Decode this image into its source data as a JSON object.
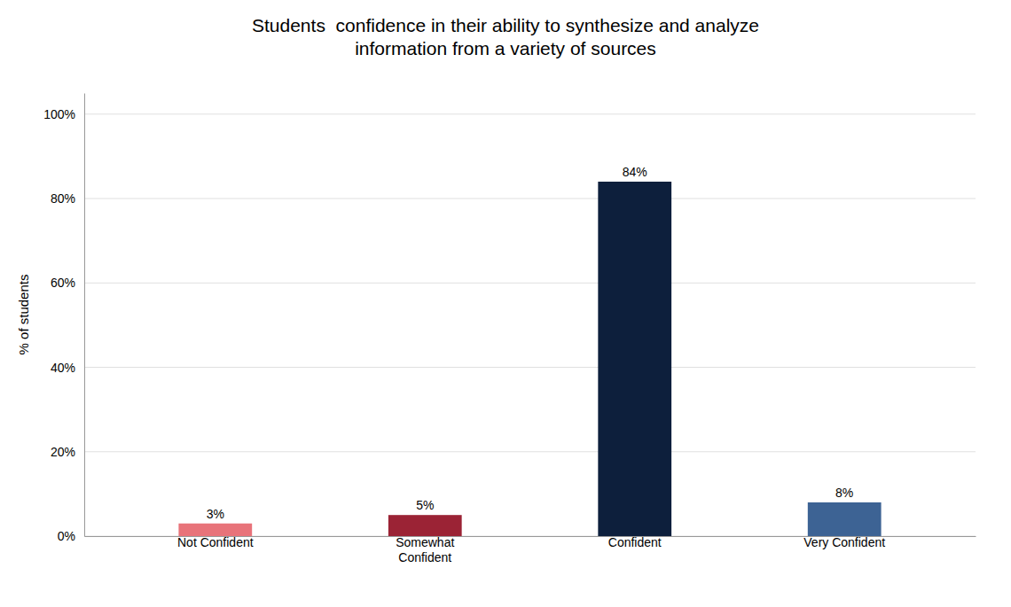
{
  "chart_data": {
    "type": "bar",
    "title": "Students  confidence in their ability to synthesize and analyze\ninformation from a variety of sources",
    "categories": [
      "Not Confident",
      "Somewhat\nConfident",
      "Confident",
      "Very Confident"
    ],
    "values": [
      3,
      5,
      84,
      8
    ],
    "value_labels": [
      "3%",
      "5%",
      "84%",
      "8%"
    ],
    "data_labels": true,
    "colors": [
      "#e8737a",
      "#9b2335",
      "#0d1f3c",
      "#3d6394"
    ],
    "ylabel": "% of students",
    "ylim": [
      0,
      105
    ],
    "yticks": [
      {
        "value": 0,
        "label": "0%"
      },
      {
        "value": 20,
        "label": "20%"
      },
      {
        "value": 40,
        "label": "40%"
      },
      {
        "value": 60,
        "label": "60%"
      },
      {
        "value": 80,
        "label": "80%"
      },
      {
        "value": 100,
        "label": "100%"
      }
    ],
    "grid": true
  }
}
